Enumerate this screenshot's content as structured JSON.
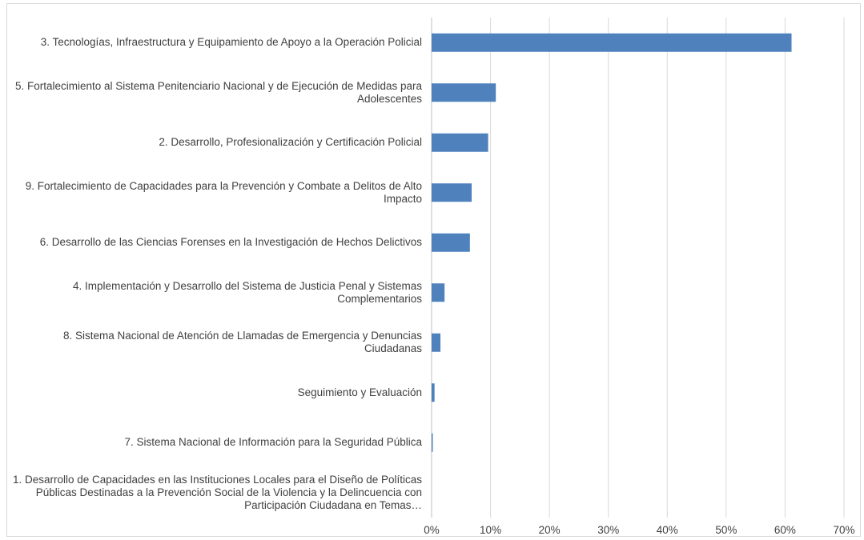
{
  "chart_data": {
    "type": "bar",
    "orientation": "horizontal",
    "categories": [
      "3. Tecnologías, Infraestructura y Equipamiento de Apoyo a la Operación Policial",
      "5. Fortalecimiento al Sistema Penitenciario Nacional y de Ejecución de Medidas para Adolescentes",
      "2. Desarrollo, Profesionalización y Certificación Policial",
      "9. Fortalecimiento de Capacidades para la Prevención y Combate a Delitos de Alto Impacto",
      "6. Desarrollo de las Ciencias Forenses en la Investigación de Hechos Delictivos",
      "4. Implementación y Desarrollo del Sistema de Justicia Penal y Sistemas Complementarios",
      "8. Sistema Nacional de Atención de Llamadas de Emergencia y Denuncias Ciudadanas",
      "Seguimiento y Evaluación",
      "7. Sistema Nacional de Información para la Seguridad Pública",
      "1. Desarrollo de Capacidades en las Instituciones Locales para el Diseño de Políticas Públicas Destinadas a la Prevención Social de la Violencia y la Delincuencia con Participación Ciudadana en Temas…"
    ],
    "values": [
      61.1,
      10.9,
      9.6,
      6.8,
      6.5,
      2.2,
      1.5,
      0.5,
      0.2,
      0
    ],
    "color": "#4f81bd",
    "xlim": [
      0,
      70
    ],
    "xticks": [
      {
        "value": 0,
        "label": "0%"
      },
      {
        "value": 10,
        "label": "10%"
      },
      {
        "value": 20,
        "label": "20%"
      },
      {
        "value": 30,
        "label": "30%"
      },
      {
        "value": 40,
        "label": "40%"
      },
      {
        "value": 50,
        "label": "50%"
      },
      {
        "value": 60,
        "label": "60%"
      },
      {
        "value": 70,
        "label": "70%"
      }
    ],
    "grid": true
  }
}
